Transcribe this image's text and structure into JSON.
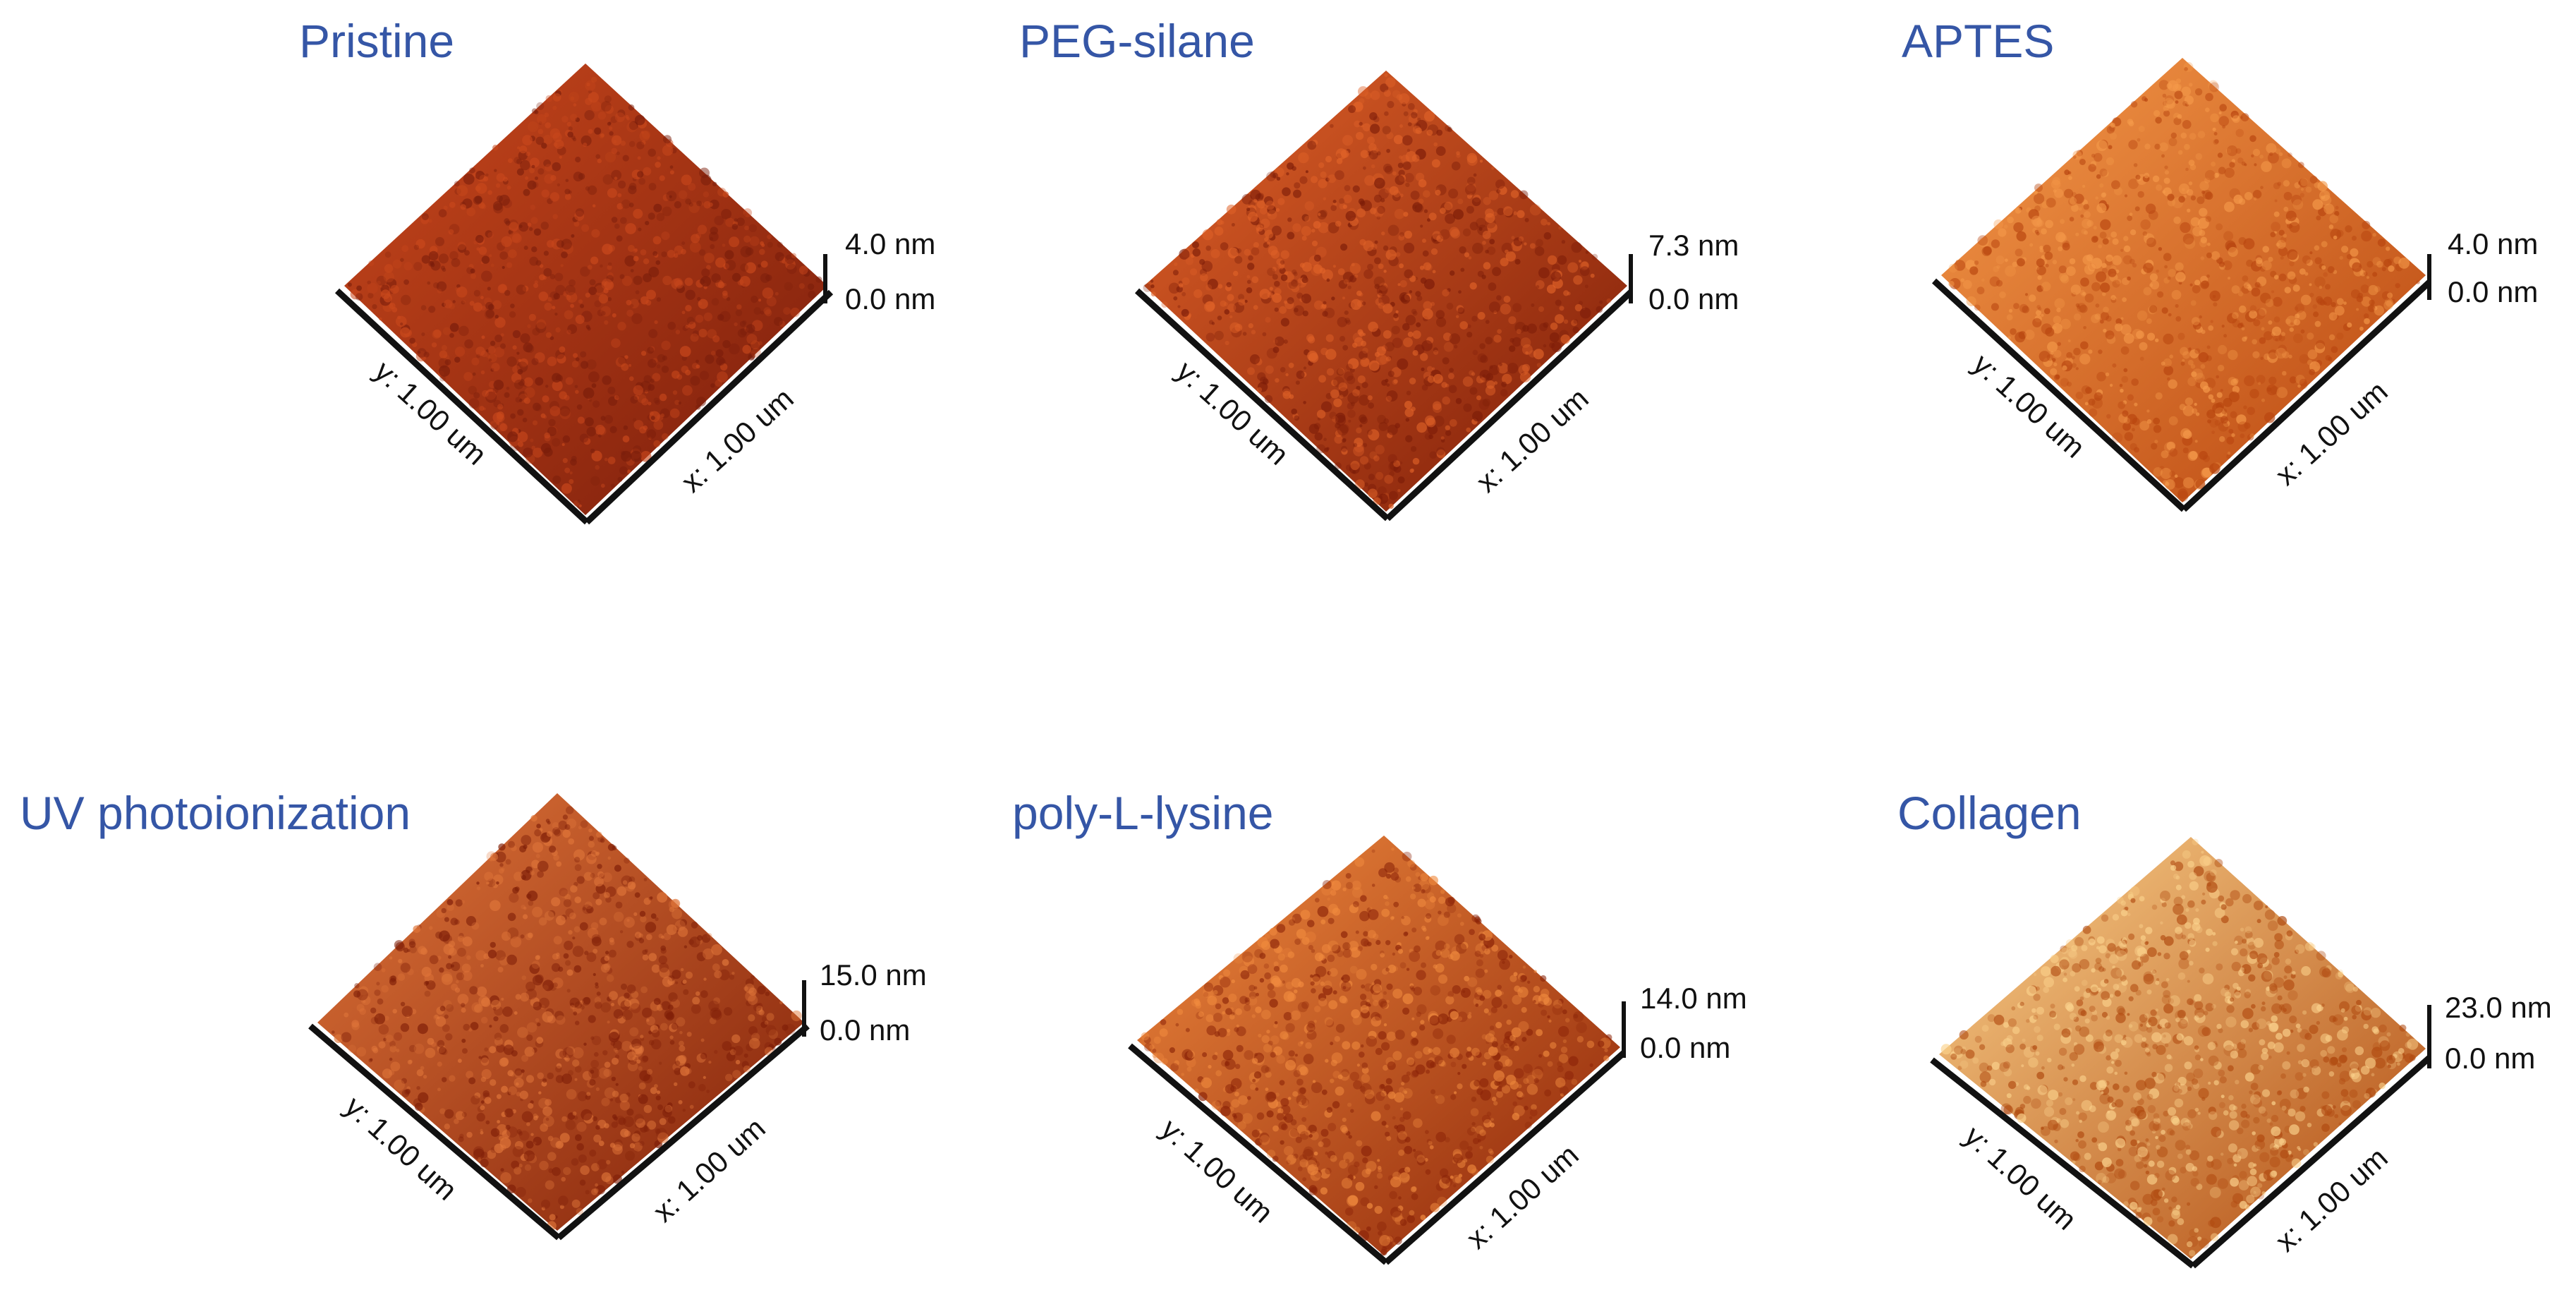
{
  "colors": {
    "title": "#3556a6",
    "axis": "#111111"
  },
  "panels": [
    {
      "title": "Pristine",
      "z_max": "4.0 nm",
      "z_min": "0.0 nm",
      "x_label": "x: 1.00 um",
      "y_label": "y: 1.00 um",
      "base": "#a52d12",
      "light": "#c9481c",
      "dark": "#7a1d0b"
    },
    {
      "title": "PEG-silane",
      "z_max": "7.3 nm",
      "z_min": "0.0 nm",
      "x_label": "x: 1.00 um",
      "y_label": "y: 1.00 um",
      "base": "#c03a12",
      "light": "#e06228",
      "dark": "#7c1c08"
    },
    {
      "title": "APTES",
      "z_max": "4.0 nm",
      "z_min": "0.0 nm",
      "x_label": "x: 1.00 um",
      "y_label": "y: 1.00 um",
      "base": "#dd6a1e",
      "light": "#f59a4a",
      "dark": "#b8450f"
    },
    {
      "title": "UV photoionization",
      "z_max": "15.0 nm",
      "z_min": "0.0 nm",
      "x_label": "x: 1.00 um",
      "y_label": "y: 1.00 um",
      "base": "#b83a12",
      "light": "#e0763a",
      "dark": "#801f08"
    },
    {
      "title": "poly-L-lysine",
      "z_max": "14.0 nm",
      "z_min": "0.0 nm",
      "x_label": "x: 1.00 um",
      "y_label": "y: 1.00 um",
      "base": "#cc4d14",
      "light": "#f08a3e",
      "dark": "#8c2408"
    },
    {
      "title": "Collagen",
      "z_max": "23.0 nm",
      "z_min": "0.0 nm",
      "x_label": "x: 1.00 um",
      "y_label": "y: 1.00 um",
      "base": "#e07a24",
      "light": "#fbd28c",
      "dark": "#b04a10"
    }
  ]
}
